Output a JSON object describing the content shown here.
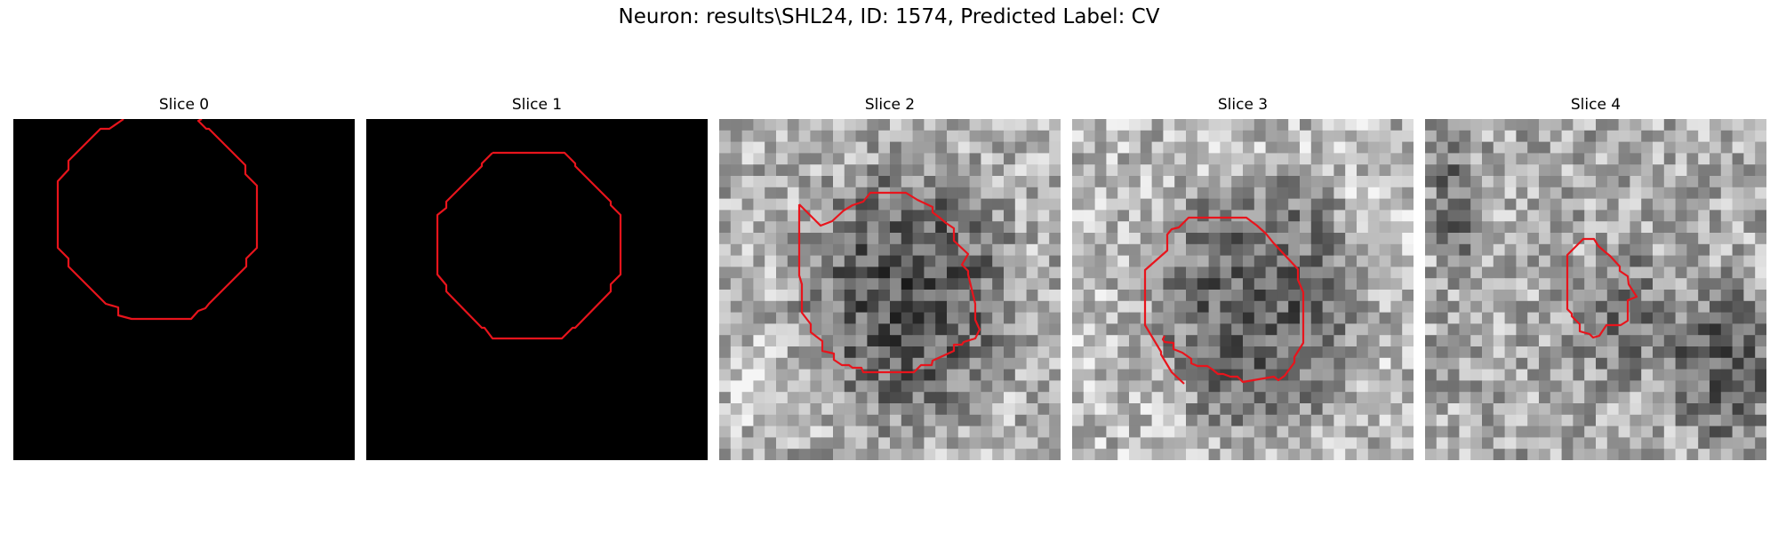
{
  "figure": {
    "title": "Neuron: results\\SHL24, ID: 1574, Predicted Label: CV"
  },
  "panels": [
    {
      "title": "Slice 0",
      "image": "black",
      "contour": "clipped-top"
    },
    {
      "title": "Slice 1",
      "image": "black",
      "contour": "closed"
    },
    {
      "title": "Slice 2",
      "image": "grayscale-noise",
      "contour": "closed"
    },
    {
      "title": "Slice 3",
      "image": "grayscale-noise",
      "contour": "clipped-bottom"
    },
    {
      "title": "Slice 4",
      "image": "grayscale-noise",
      "contour": "closed"
    }
  ],
  "colors": {
    "contour": "#e8141c",
    "background": "#ffffff",
    "empty_slice": "#000000"
  }
}
